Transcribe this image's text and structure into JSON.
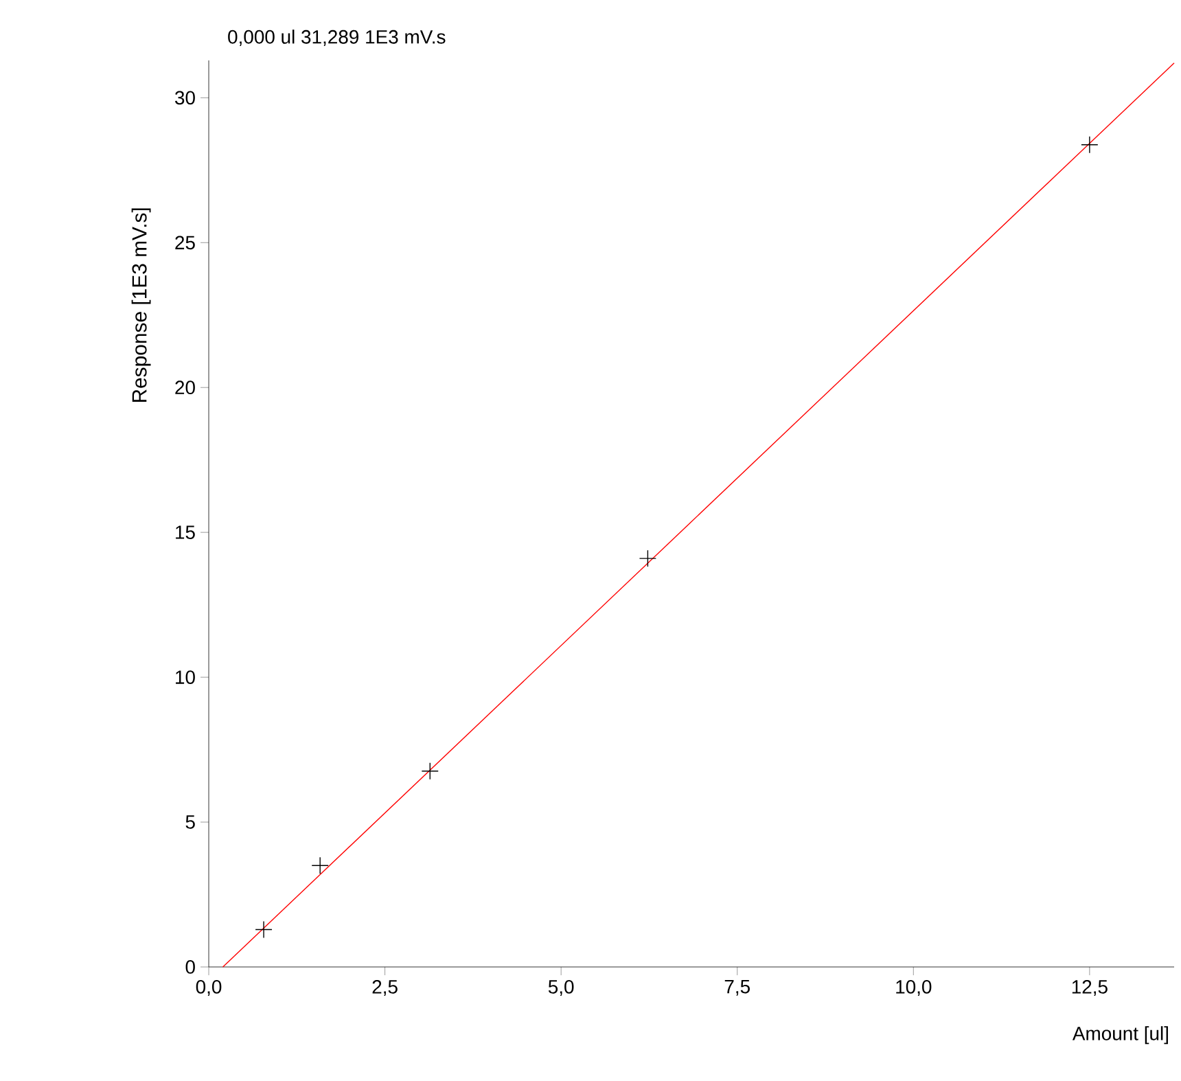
{
  "chart_data": {
    "type": "scatter",
    "annotations": [
      "0,000 ul   31,289 1E3 mV.s"
    ],
    "xlabel": "Amount [ul]",
    "ylabel": "Response [1E3 mV.s]",
    "xlim": [
      0,
      13.7
    ],
    "ylim": [
      0,
      31.289
    ],
    "xticks": [
      {
        "value": 0,
        "label": "0,0"
      },
      {
        "value": 2.5,
        "label": "2,5"
      },
      {
        "value": 5,
        "label": "5,0"
      },
      {
        "value": 7.5,
        "label": "7,5"
      },
      {
        "value": 10,
        "label": "10,0"
      },
      {
        "value": 12.5,
        "label": "12,5"
      }
    ],
    "yticks": [
      0,
      5,
      10,
      15,
      20,
      25,
      30
    ],
    "grid": false,
    "series": [
      {
        "type": "line",
        "color": "#ff0000",
        "x": [
          0.2,
          13.7
        ],
        "values": [
          0,
          31.2
        ],
        "marker": "none"
      },
      {
        "color": "#000000",
        "x": [
          0.78,
          1.58,
          3.14,
          6.23,
          12.5
        ],
        "values": [
          1.29,
          3.5,
          6.76,
          14.1,
          28.38
        ],
        "marker": "cross"
      }
    ]
  }
}
